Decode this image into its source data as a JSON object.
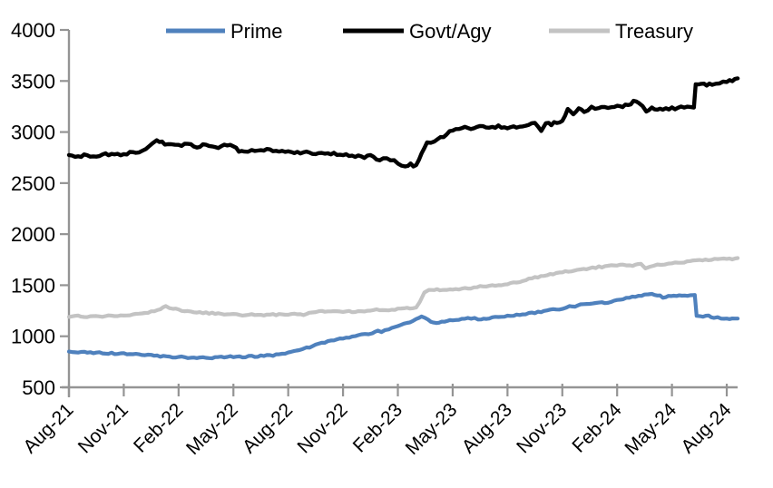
{
  "chart_data": {
    "type": "line",
    "title": "",
    "xlabel": "",
    "ylabel": "",
    "ylim": [
      500,
      4000
    ],
    "grid": false,
    "legend_position": "top",
    "axis_color": "#949494",
    "y_axis": {
      "ticks": [
        500,
        1000,
        1500,
        2000,
        2500,
        3000,
        3500,
        4000
      ]
    },
    "x_axis": {
      "ticks": [
        "Aug-21",
        "Nov-21",
        "Feb-22",
        "May-22",
        "Aug-22",
        "Nov-22",
        "Feb-23",
        "May-23",
        "Aug-23",
        "Nov-23",
        "Feb-24",
        "May-24",
        "Aug-24"
      ],
      "positions": [
        0,
        3,
        6,
        9,
        12,
        15,
        18,
        21,
        24,
        27,
        30,
        33,
        36
      ],
      "unit": "months-since-Aug-21"
    },
    "series": [
      {
        "name": "Prime",
        "color": "#4f81bd",
        "points": [
          [
            0,
            845
          ],
          [
            0.5,
            841
          ],
          [
            1,
            843
          ],
          [
            1.5,
            838
          ],
          [
            2,
            836
          ],
          [
            2.5,
            831
          ],
          [
            3,
            828
          ],
          [
            3.5,
            823
          ],
          [
            4,
            818
          ],
          [
            4.5,
            812
          ],
          [
            5,
            806
          ],
          [
            5.5,
            800
          ],
          [
            6,
            797
          ],
          [
            6.5,
            793
          ],
          [
            7,
            791
          ],
          [
            7.5,
            789
          ],
          [
            8,
            792
          ],
          [
            8.5,
            796
          ],
          [
            9,
            801
          ],
          [
            9.5,
            797
          ],
          [
            10,
            803
          ],
          [
            10.5,
            806
          ],
          [
            11,
            811
          ],
          [
            11.5,
            820
          ],
          [
            12,
            838
          ],
          [
            12.3,
            858
          ],
          [
            12.6,
            864
          ],
          [
            13,
            884
          ],
          [
            13.5,
            912
          ],
          [
            14,
            938
          ],
          [
            14.5,
            962
          ],
          [
            15,
            980
          ],
          [
            15.5,
            998
          ],
          [
            16,
            1012
          ],
          [
            16.6,
            1032
          ],
          [
            16.9,
            1055
          ],
          [
            17.1,
            1042
          ],
          [
            17.5,
            1068
          ],
          [
            18,
            1098
          ],
          [
            18.5,
            1132
          ],
          [
            19,
            1163
          ],
          [
            19.3,
            1188
          ],
          [
            19.5,
            1178
          ],
          [
            19.8,
            1142
          ],
          [
            20.1,
            1133
          ],
          [
            20.4,
            1146
          ],
          [
            20.7,
            1152
          ],
          [
            21,
            1160
          ],
          [
            21.5,
            1170
          ],
          [
            22,
            1178
          ],
          [
            22.4,
            1170
          ],
          [
            22.7,
            1167
          ],
          [
            23,
            1176
          ],
          [
            23.5,
            1188
          ],
          [
            24,
            1198
          ],
          [
            24.5,
            1208
          ],
          [
            25,
            1222
          ],
          [
            25.5,
            1232
          ],
          [
            26,
            1246
          ],
          [
            26.5,
            1260
          ],
          [
            27,
            1272
          ],
          [
            27.4,
            1295
          ],
          [
            27.7,
            1287
          ],
          [
            28,
            1308
          ],
          [
            28.5,
            1316
          ],
          [
            29,
            1326
          ],
          [
            29.5,
            1334
          ],
          [
            30,
            1352
          ],
          [
            30.5,
            1370
          ],
          [
            31,
            1388
          ],
          [
            31.5,
            1402
          ],
          [
            31.9,
            1413
          ],
          [
            32.2,
            1406
          ],
          [
            32.5,
            1379
          ],
          [
            32.8,
            1396
          ],
          [
            33.1,
            1403
          ],
          [
            33.4,
            1396
          ],
          [
            33.7,
            1399
          ],
          [
            34,
            1401
          ],
          [
            34.25,
            1399
          ],
          [
            34.35,
            1198
          ],
          [
            34.7,
            1193
          ],
          [
            35,
            1197
          ],
          [
            35.3,
            1186
          ],
          [
            35.7,
            1177
          ],
          [
            36,
            1172
          ],
          [
            36.3,
            1169
          ],
          [
            36.6,
            1176
          ]
        ]
      },
      {
        "name": "Govt/Agy",
        "color": "#000000",
        "points": [
          [
            0,
            2768
          ],
          [
            0.5,
            2760
          ],
          [
            1,
            2774
          ],
          [
            1.5,
            2766
          ],
          [
            2,
            2780
          ],
          [
            2.5,
            2771
          ],
          [
            3,
            2787
          ],
          [
            3.5,
            2798
          ],
          [
            4,
            2814
          ],
          [
            4.4,
            2868
          ],
          [
            4.8,
            2928
          ],
          [
            5.1,
            2898
          ],
          [
            5.4,
            2872
          ],
          [
            6,
            2863
          ],
          [
            6.5,
            2888
          ],
          [
            7,
            2856
          ],
          [
            7.5,
            2880
          ],
          [
            8,
            2848
          ],
          [
            8.5,
            2870
          ],
          [
            9,
            2860
          ],
          [
            9.3,
            2818
          ],
          [
            9.6,
            2810
          ],
          [
            10,
            2824
          ],
          [
            10.5,
            2816
          ],
          [
            11,
            2827
          ],
          [
            11.5,
            2814
          ],
          [
            12,
            2811
          ],
          [
            12.5,
            2800
          ],
          [
            13,
            2806
          ],
          [
            13.5,
            2790
          ],
          [
            14,
            2780
          ],
          [
            14.5,
            2790
          ],
          [
            15,
            2770
          ],
          [
            15.5,
            2776
          ],
          [
            16,
            2750
          ],
          [
            16.5,
            2766
          ],
          [
            17,
            2720
          ],
          [
            17.4,
            2748
          ],
          [
            18,
            2698
          ],
          [
            18.4,
            2660
          ],
          [
            18.7,
            2686
          ],
          [
            19,
            2665
          ],
          [
            19.3,
            2798
          ],
          [
            19.6,
            2888
          ],
          [
            20,
            2915
          ],
          [
            20.5,
            2955
          ],
          [
            21,
            3020
          ],
          [
            21.5,
            3046
          ],
          [
            22,
            3028
          ],
          [
            22.5,
            3050
          ],
          [
            23,
            3038
          ],
          [
            23.5,
            3056
          ],
          [
            24,
            3043
          ],
          [
            24.5,
            3050
          ],
          [
            25,
            3072
          ],
          [
            25.5,
            3098
          ],
          [
            25.85,
            3015
          ],
          [
            26.1,
            3088
          ],
          [
            26.4,
            3078
          ],
          [
            26.7,
            3093
          ],
          [
            27,
            3108
          ],
          [
            27.3,
            3218
          ],
          [
            27.6,
            3178
          ],
          [
            27.9,
            3228
          ],
          [
            28.2,
            3188
          ],
          [
            28.6,
            3238
          ],
          [
            29,
            3228
          ],
          [
            29.3,
            3248
          ],
          [
            29.7,
            3240
          ],
          [
            30,
            3256
          ],
          [
            30.3,
            3246
          ],
          [
            30.6,
            3268
          ],
          [
            30.9,
            3298
          ],
          [
            31.2,
            3278
          ],
          [
            31.6,
            3206
          ],
          [
            31.9,
            3238
          ],
          [
            32.2,
            3228
          ],
          [
            32.5,
            3222
          ],
          [
            33,
            3230
          ],
          [
            33.5,
            3238
          ],
          [
            34,
            3246
          ],
          [
            34.2,
            3252
          ],
          [
            34.3,
            3458
          ],
          [
            34.6,
            3478
          ],
          [
            34.9,
            3462
          ],
          [
            35.2,
            3470
          ],
          [
            35.6,
            3488
          ],
          [
            36,
            3502
          ],
          [
            36.3,
            3498
          ],
          [
            36.6,
            3522
          ]
        ]
      },
      {
        "name": "Treasury",
        "color": "#c3c3c3",
        "points": [
          [
            0,
            1192
          ],
          [
            0.5,
            1196
          ],
          [
            1,
            1190
          ],
          [
            1.5,
            1198
          ],
          [
            2,
            1196
          ],
          [
            2.5,
            1203
          ],
          [
            3,
            1206
          ],
          [
            3.5,
            1213
          ],
          [
            4,
            1222
          ],
          [
            4.5,
            1243
          ],
          [
            5,
            1266
          ],
          [
            5.3,
            1290
          ],
          [
            5.7,
            1272
          ],
          [
            6,
            1258
          ],
          [
            6.5,
            1247
          ],
          [
            7,
            1238
          ],
          [
            7.5,
            1230
          ],
          [
            8,
            1221
          ],
          [
            8.5,
            1215
          ],
          [
            9,
            1217
          ],
          [
            9.5,
            1209
          ],
          [
            10,
            1211
          ],
          [
            10.5,
            1207
          ],
          [
            11,
            1214
          ],
          [
            11.5,
            1211
          ],
          [
            12,
            1217
          ],
          [
            12.5,
            1214
          ],
          [
            13,
            1211
          ],
          [
            13.3,
            1238
          ],
          [
            13.7,
            1244
          ],
          [
            14,
            1241
          ],
          [
            14.5,
            1247
          ],
          [
            15,
            1244
          ],
          [
            15.5,
            1241
          ],
          [
            16,
            1247
          ],
          [
            16.5,
            1254
          ],
          [
            17,
            1261
          ],
          [
            17.5,
            1257
          ],
          [
            18,
            1268
          ],
          [
            18.5,
            1276
          ],
          [
            19,
            1281
          ],
          [
            19.2,
            1338
          ],
          [
            19.45,
            1428
          ],
          [
            19.7,
            1450
          ],
          [
            20,
            1458
          ],
          [
            20.3,
            1450
          ],
          [
            20.7,
            1456
          ],
          [
            21,
            1460
          ],
          [
            21.5,
            1466
          ],
          [
            22,
            1473
          ],
          [
            22.5,
            1486
          ],
          [
            23,
            1493
          ],
          [
            23.5,
            1503
          ],
          [
            24,
            1510
          ],
          [
            24.5,
            1528
          ],
          [
            25,
            1552
          ],
          [
            25.5,
            1575
          ],
          [
            26,
            1592
          ],
          [
            26.5,
            1608
          ],
          [
            27,
            1626
          ],
          [
            27.5,
            1640
          ],
          [
            28,
            1656
          ],
          [
            28.5,
            1666
          ],
          [
            29,
            1678
          ],
          [
            29.5,
            1686
          ],
          [
            30,
            1694
          ],
          [
            30.3,
            1699
          ],
          [
            30.7,
            1691
          ],
          [
            31,
            1697
          ],
          [
            31.3,
            1704
          ],
          [
            31.55,
            1671
          ],
          [
            31.8,
            1688
          ],
          [
            32.2,
            1698
          ],
          [
            32.6,
            1706
          ],
          [
            33,
            1713
          ],
          [
            33.5,
            1723
          ],
          [
            34,
            1738
          ],
          [
            34.5,
            1746
          ],
          [
            35,
            1750
          ],
          [
            35.5,
            1756
          ],
          [
            36,
            1760
          ],
          [
            36.3,
            1756
          ],
          [
            36.6,
            1764
          ]
        ]
      }
    ]
  }
}
